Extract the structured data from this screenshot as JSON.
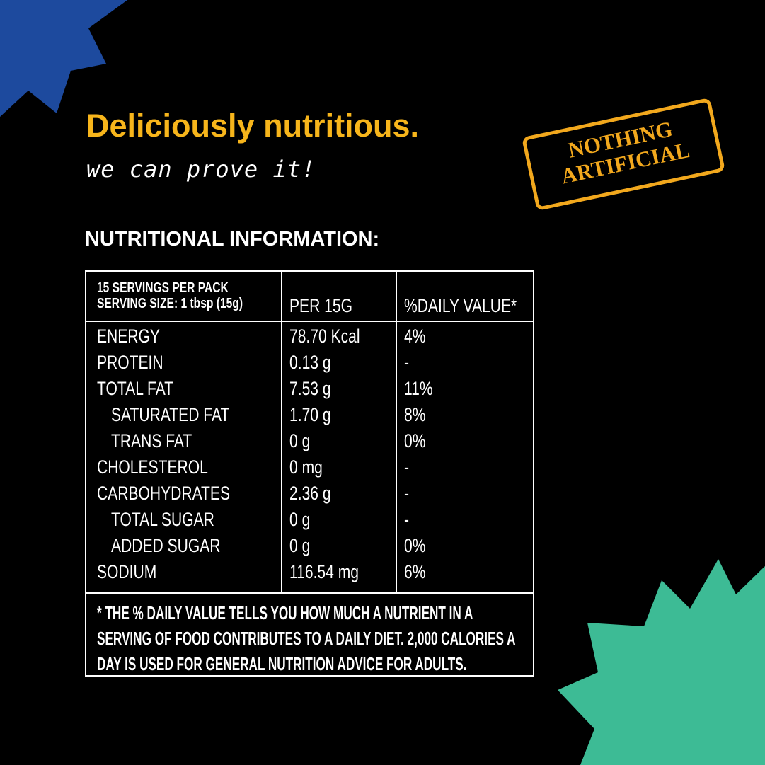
{
  "headline": "Deliciously nutritious.",
  "tagline": "we can prove it!",
  "stamp": [
    "NOTHING",
    "ARTIFICIAL"
  ],
  "section_title": "NUTRITIONAL INFORMATION:",
  "table": {
    "header": {
      "servings": "15 SERVINGS PER PACK",
      "serving_size": "SERVING SIZE: 1 tbsp (15g)",
      "per": "PER 15G",
      "daily_value": "%DAILY VALUE*"
    },
    "rows": [
      [
        "ENERGY",
        "78.70 Kcal",
        "4%"
      ],
      [
        "PROTEIN",
        "0.13 g",
        "-"
      ],
      [
        "TOTAL FAT",
        "7.53 g",
        "11%"
      ],
      [
        "SATURATED FAT",
        "1.70 g",
        "8%"
      ],
      [
        "TRANS FAT",
        "0 g",
        "0%"
      ],
      [
        "CHOLESTEROL",
        "0 mg",
        "-"
      ],
      [
        "CARBOHYDRATES",
        "2.36 g",
        "-"
      ],
      [
        "TOTAL SUGAR",
        "0 g",
        "-"
      ],
      [
        "ADDED SUGAR",
        "0 g",
        "0%"
      ],
      [
        "SODIUM",
        "116.54 mg",
        "6%"
      ]
    ],
    "footnote": [
      "* THE % DAILY VALUE TELLS YOU HOW MUCH A NUTRIENT IN A",
      "SERVING OF FOOD CONTRIBUTES TO A DAILY DIET. 2,000 CALORIES A",
      "DAY IS USED FOR GENERAL NUTRITION ADVICE FOR ADULTS."
    ]
  }
}
